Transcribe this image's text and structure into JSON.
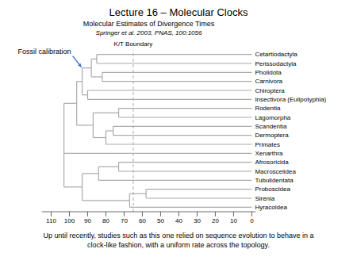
{
  "chart_data": {
    "type": "tree",
    "title": "Lecture 16 – Molecular Clocks",
    "subtitle": "Molecular Estimates of Divergence Times",
    "subtitle2": "Springer et al. 2003, PNAS, 100:1056",
    "caption": [
      "Up until recently, studies such as this one relied on sequence evolution to behave in a",
      "clock-like fashion, with a uniform rate across the topology."
    ],
    "xlim": [
      115,
      -2
    ],
    "xticks": [
      110,
      100,
      90,
      80,
      70,
      60,
      50,
      40,
      30,
      20,
      10,
      0
    ],
    "color": "#aaaaaa",
    "text_color": "#000000",
    "arrow_color": "#4472c4",
    "reference_line": {
      "x": 65,
      "label": "K/T Boundary",
      "color": "#aaaaaa"
    },
    "tree": {
      "x": 103,
      "children": [
        {
          "x": 96,
          "children": [
            {
              "x": 93,
              "children": [
                {
                  "x": 88,
                  "arrow_label": "Fossil calibration",
                  "children": [
                    {
                      "x": 85,
                      "children": [
                        {
                          "name": "Cetartiodactyla",
                          "x": 0
                        },
                        {
                          "name": "Perissodactyla",
                          "x": 0
                        }
                      ]
                    },
                    {
                      "x": 82,
                      "children": [
                        {
                          "name": "Pholidota",
                          "x": 0
                        },
                        {
                          "name": "Carnivora",
                          "x": 0
                        }
                      ]
                    }
                  ]
                },
                {
                  "x": 90,
                  "children": [
                    {
                      "name": "Chiroptera",
                      "x": 0
                    },
                    {
                      "name": "Insectivora (Eulipotyphla)",
                      "x": 0
                    }
                  ]
                }
              ]
            },
            {
              "x": 87,
              "children": [
                {
                  "x": 73,
                  "children": [
                    {
                      "name": "Rodentia",
                      "x": 0
                    },
                    {
                      "name": "Lagomorpha",
                      "x": 0
                    }
                  ]
                },
                {
                  "x": 80,
                  "children": [
                    {
                      "x": 76,
                      "children": [
                        {
                          "name": "Scandentia",
                          "x": 0
                        },
                        {
                          "name": "Dermoptera",
                          "x": 0
                        }
                      ]
                    },
                    {
                      "name": "Primates",
                      "x": 0
                    }
                  ]
                }
              ]
            }
          ]
        },
        {
          "name": "Xenarthra",
          "x": 0
        },
        {
          "x": 93,
          "children": [
            {
              "x": 84,
              "children": [
                {
                  "x": 73,
                  "children": [
                    {
                      "name": "Afrosoricida",
                      "x": 0
                    },
                    {
                      "name": "Macroscelidea",
                      "x": 0
                    }
                  ]
                },
                {
                  "name": "Tubulidentata",
                  "x": 0
                }
              ]
            },
            {
              "x": 67,
              "children": [
                {
                  "x": 58,
                  "children": [
                    {
                      "name": "Proboscidea",
                      "x": 0
                    },
                    {
                      "name": "Sirenia",
                      "x": 0
                    }
                  ]
                },
                {
                  "name": "Hyracoidea",
                  "x": 0
                }
              ]
            }
          ]
        }
      ]
    }
  }
}
